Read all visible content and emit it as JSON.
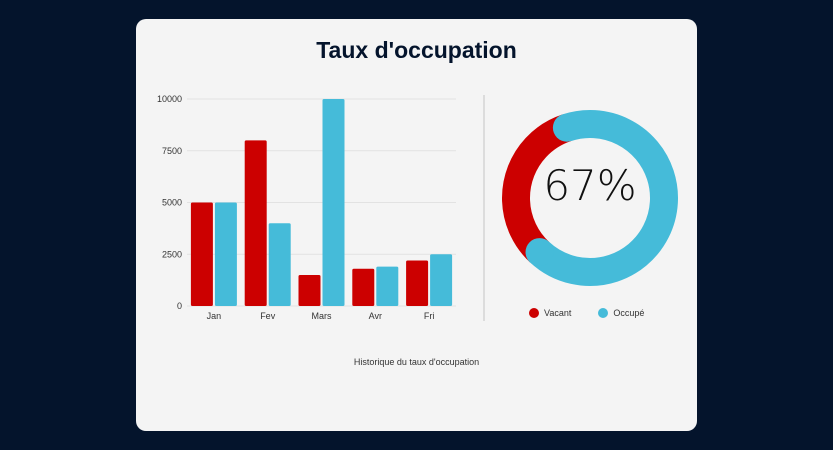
{
  "card": {
    "title": "Taux d'occupation",
    "caption": "Historique du taux d'occupation"
  },
  "colors": {
    "vacant": "#cc0000",
    "occupe": "#45bbd9",
    "background": "#04142c",
    "card": "#f4f4f4"
  },
  "chart_data": [
    {
      "type": "bar",
      "categories": [
        "Jan",
        "Fev",
        "Mars",
        "Avr",
        "Fri"
      ],
      "series": [
        {
          "values": [
            5000,
            8000,
            1500,
            1800,
            2200
          ],
          "color": "#cc0000"
        },
        {
          "values": [
            5000,
            4000,
            10000,
            1900,
            2500
          ],
          "color": "#45bbd9"
        }
      ],
      "yticks": [
        0,
        2500,
        5000,
        7500,
        10000
      ],
      "ylim": [
        0,
        10000
      ],
      "grid": true,
      "legend": "none"
    },
    {
      "type": "pie",
      "variant": "donut",
      "center_label": "67%",
      "slices": [
        {
          "label": "Vacant",
          "value": 33,
          "color": "#cc0000"
        },
        {
          "label": "Occupé",
          "value": 67,
          "color": "#45bbd9"
        }
      ],
      "legend": "bottom"
    }
  ]
}
